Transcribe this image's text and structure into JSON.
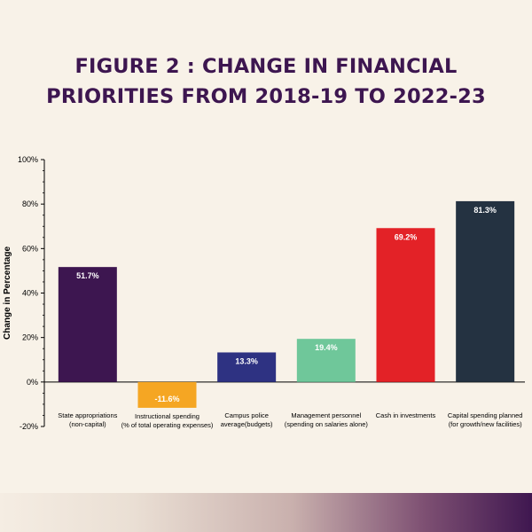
{
  "title": {
    "line1": "FIGURE 2 : CHANGE IN FINANCIAL",
    "line2": "PRIORITIES FROM 2018-19 TO 2022-23"
  },
  "chart_data": {
    "type": "bar",
    "title": "FIGURE 2 : CHANGE IN FINANCIAL PRIORITIES FROM 2018-19 TO 2022-23",
    "xlabel": "",
    "ylabel": "Change in Percentage",
    "ylim": [
      -20,
      100
    ],
    "yticks": [
      "-20%",
      "0%",
      "20%",
      "40%",
      "60%",
      "80%",
      "100%"
    ],
    "grid": false,
    "categories": [
      [
        "State appropriations",
        "(non-capital)"
      ],
      [
        "Instructional spending",
        "(% of total operating expenses)"
      ],
      [
        "Campus police",
        "average(budgets)"
      ],
      [
        "Management personnel",
        "(spending on salaries alone)"
      ],
      [
        "Cash in investments"
      ],
      [
        "Capital spending planned",
        "(for growth/new facilities)"
      ]
    ],
    "values": [
      51.7,
      -11.6,
      13.3,
      19.4,
      69.2,
      81.3
    ],
    "labels": [
      "51.7%",
      "-11.6%",
      "13.3%",
      "19.4%",
      "69.2%",
      "81.3%"
    ],
    "colors": [
      "#3d1650",
      "#f5a623",
      "#2e3282",
      "#6fc79a",
      "#e32227",
      "#243241"
    ]
  }
}
